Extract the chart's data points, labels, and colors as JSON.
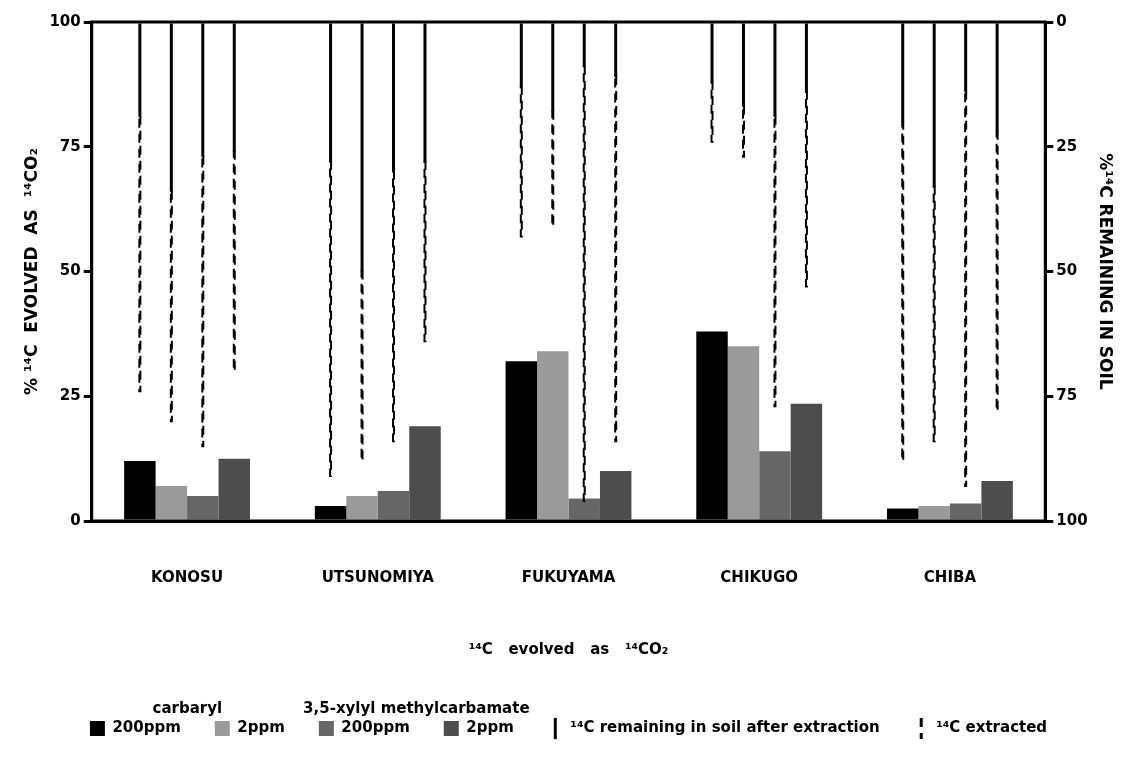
{
  "chart_data": {
    "type": "bar",
    "categories": [
      "KONOSU",
      "UTSUNOMIYA",
      "FUKUYAMA",
      "CHIKUGO",
      "CHIBA"
    ],
    "ylabel": "% ¹⁴C  EVOLVED  AS  ¹⁴CO₂",
    "y2label": "%¹⁴C REMAINING IN SOIL",
    "legend_title": "¹⁴C   evolved   as   ¹⁴CO₂",
    "annotations": [
      "carbaryl",
      "3,5-xylyl methylcarbamate"
    ],
    "ylim": [
      0,
      100
    ],
    "yticks": [
      0,
      25,
      50,
      75,
      100
    ],
    "y2lim": [
      100,
      0
    ],
    "y2ticks": [
      0,
      25,
      50,
      75,
      100
    ],
    "legend": "bottom",
    "series": [
      {
        "name": "200ppm",
        "color": "#000000",
        "values": [
          12,
          3,
          32,
          38,
          2.5
        ]
      },
      {
        "name": "2ppm",
        "color": "#9a9a9a",
        "values": [
          7,
          5,
          34,
          35,
          3
        ]
      },
      {
        "name": "200ppm",
        "color": "#666666",
        "values": [
          5,
          6,
          4.5,
          14,
          3.5
        ]
      },
      {
        "name": "2ppm",
        "color": "#4d4d4d",
        "values": [
          12.5,
          19,
          10,
          23.5,
          8
        ]
      },
      {
        "name": "¹⁴C remaining in soil after extraction",
        "color": "#000000",
        "axis": "y2",
        "line_style": "solid",
        "base": [
          0,
          0,
          0,
          0,
          0
        ],
        "values": [
          19,
          28,
          13,
          12,
          20
        ]
      },
      {
        "name": "¹⁴C extracted",
        "color": "#000000",
        "axis": "y2",
        "line_style": "dashed",
        "base": [
          19,
          28,
          13,
          12,
          20
        ],
        "values": [
          55,
          63,
          30,
          12,
          68
        ]
      },
      {
        "color": "#000000",
        "axis": "y2",
        "line_style": "solid",
        "base": [
          0,
          0,
          0,
          0,
          0
        ],
        "values": [
          34,
          50,
          18,
          17,
          33
        ]
      },
      {
        "color": "#000000",
        "axis": "y2",
        "line_style": "dashed",
        "base": [
          34,
          50,
          18,
          17,
          33
        ],
        "values": [
          46,
          38,
          23,
          10,
          51
        ]
      },
      {
        "color": "#000000",
        "axis": "y2",
        "line_style": "solid",
        "base": [
          0,
          0,
          0,
          0,
          0
        ],
        "values": [
          27,
          30,
          9,
          19,
          14
        ]
      },
      {
        "color": "#000000",
        "axis": "y2",
        "line_style": "dashed",
        "base": [
          27,
          30,
          9,
          19,
          14
        ],
        "values": [
          58,
          54,
          87,
          58,
          79
        ]
      },
      {
        "color": "#000000",
        "axis": "y2",
        "line_style": "solid",
        "base": [
          0,
          0,
          0,
          0,
          0
        ],
        "values": [
          26,
          28,
          11,
          14,
          22
        ]
      },
      {
        "color": "#000000",
        "axis": "y2",
        "line_style": "dashed",
        "base": [
          26,
          28,
          11,
          14,
          22
        ],
        "values": [
          44,
          36,
          73,
          39,
          56
        ]
      }
    ]
  }
}
